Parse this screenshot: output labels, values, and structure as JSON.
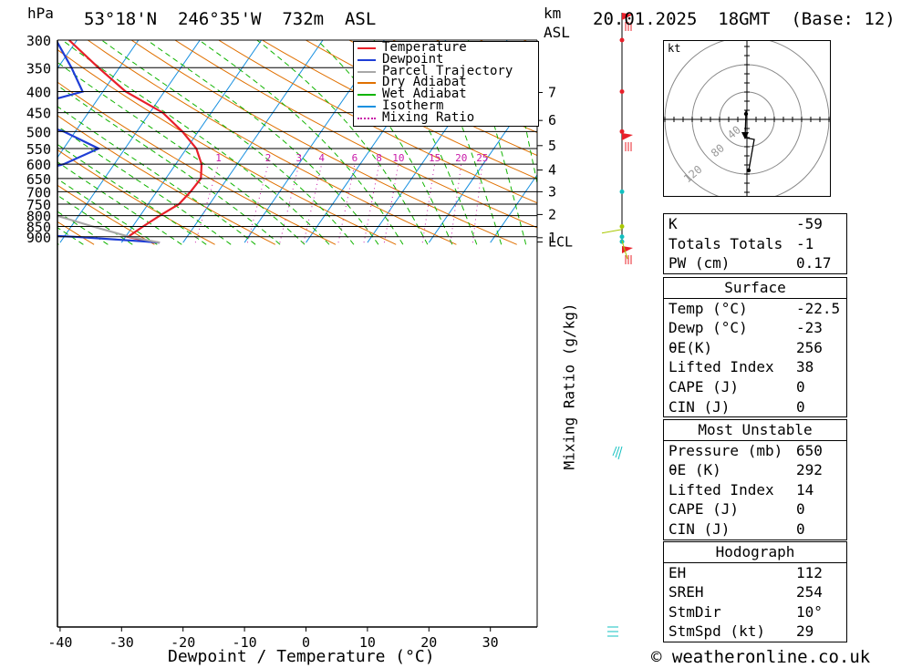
{
  "header": {
    "location": "53°18'N  246°35'W  732m  ASL",
    "datetime": "20.01.2025  18GMT  (Base: 12)",
    "hpa_label": "hPa",
    "km_label": "km",
    "asl_label": "ASL"
  },
  "chart_data": {
    "type": "line",
    "xlabel": "Dewpoint / Temperature (°C)",
    "ylabel_left": "hPa",
    "ylabel_right": "Mixing Ratio (g/kg)",
    "x_ticks": [
      -40,
      -30,
      -20,
      -10,
      0,
      10,
      20,
      30
    ],
    "pressure_levels": [
      300,
      350,
      400,
      450,
      500,
      550,
      600,
      650,
      700,
      750,
      800,
      850,
      900
    ],
    "km_ticks": [
      {
        "label": "7",
        "p": 402
      },
      {
        "label": "6",
        "p": 470
      },
      {
        "label": "5",
        "p": 541
      },
      {
        "label": "4",
        "p": 620
      },
      {
        "label": "3",
        "p": 700
      },
      {
        "label": "2",
        "p": 795
      },
      {
        "label": "1",
        "p": 905
      },
      {
        "label": "LCL",
        "p": 927
      }
    ],
    "mixing_ratio_labels": [
      "1",
      "2",
      "3",
      "4",
      "6",
      "8",
      "10",
      "15",
      "20",
      "25"
    ],
    "legend": {
      "placement": "top-right",
      "entries": [
        {
          "name": "Temperature",
          "color": "#e8202a",
          "style": "solid"
        },
        {
          "name": "Dewpoint",
          "color": "#1f3ed6",
          "style": "solid"
        },
        {
          "name": "Parcel Trajectory",
          "color": "#a8a8a8",
          "style": "solid"
        },
        {
          "name": "Dry Adiabat",
          "color": "#e07000",
          "style": "solid"
        },
        {
          "name": "Wet Adiabat",
          "color": "#11b400",
          "style": "solid"
        },
        {
          "name": "Isotherm",
          "color": "#1890e0",
          "style": "solid"
        },
        {
          "name": "Mixing Ratio",
          "color": "#c81aa8",
          "style": "dotted"
        }
      ]
    },
    "series": [
      {
        "name": "Temperature",
        "color": "#e8202a",
        "points": [
          [
            300,
            -61.3
          ],
          [
            350,
            -53.4
          ],
          [
            400,
            -46.3
          ],
          [
            450,
            -37.9
          ],
          [
            500,
            -32.6
          ],
          [
            550,
            -28.4
          ],
          [
            600,
            -25.8
          ],
          [
            650,
            -24.3
          ],
          [
            700,
            -24.5
          ],
          [
            750,
            -25.0
          ],
          [
            800,
            -26.8
          ],
          [
            850,
            -28.3
          ],
          [
            900,
            -29.6
          ],
          [
            925,
            -25.6
          ],
          [
            930,
            -23.8
          ]
        ]
      },
      {
        "name": "Dewpoint",
        "color": "#1f3ed6",
        "points": [
          [
            300,
            -63.4
          ],
          [
            350,
            -57.8
          ],
          [
            400,
            -53.3
          ],
          [
            450,
            -63.6
          ],
          [
            500,
            -51.9
          ],
          [
            550,
            -44.3
          ],
          [
            600,
            -48.2
          ],
          [
            650,
            -55.3
          ],
          [
            700,
            -72.2
          ],
          [
            750,
            -81.1
          ],
          [
            800,
            -84.0
          ],
          [
            850,
            -80.4
          ],
          [
            900,
            -38.3
          ],
          [
            925,
            -26.0
          ],
          [
            930,
            -23.8
          ]
        ]
      },
      {
        "name": "Parcel Trajectory",
        "color": "#a8a8a8",
        "points": [
          [
            930,
            -23.8
          ],
          [
            900,
            -29.4
          ],
          [
            850,
            -36.5
          ],
          [
            800,
            -43.6
          ],
          [
            750,
            -50.5
          ],
          [
            700,
            -57.8
          ],
          [
            650,
            -65.9
          ],
          [
            600,
            -73.9
          ],
          [
            550,
            -82.5
          ],
          [
            520,
            -88
          ]
        ]
      }
    ]
  },
  "hodograph": {
    "unit_label": "kt",
    "ring_labels": [
      "40",
      "80",
      "120"
    ]
  },
  "indices": {
    "top": [
      {
        "label": "K",
        "value": "-59"
      },
      {
        "label": "Totals Totals",
        "value": "-1"
      },
      {
        "label": "PW (cm)",
        "value": "0.17"
      }
    ],
    "surface": {
      "title": "Surface",
      "rows": [
        {
          "label": "Temp (°C)",
          "value": "-22.5"
        },
        {
          "label": "Dewp (°C)",
          "value": "-23"
        },
        {
          "label": "θE(K)",
          "value": "256"
        },
        {
          "label": "Lifted Index",
          "value": "38"
        },
        {
          "label": "CAPE (J)",
          "value": "0"
        },
        {
          "label": "CIN (J)",
          "value": "0"
        }
      ]
    },
    "most_unstable": {
      "title": "Most Unstable",
      "rows": [
        {
          "label": "Pressure (mb)",
          "value": "650"
        },
        {
          "label": "θE (K)",
          "value": "292"
        },
        {
          "label": "Lifted Index",
          "value": "14"
        },
        {
          "label": "CAPE (J)",
          "value": "0"
        },
        {
          "label": "CIN (J)",
          "value": "0"
        }
      ]
    },
    "hodograph_box": {
      "title": "Hodograph",
      "rows": [
        {
          "label": "EH",
          "value": "112"
        },
        {
          "label": "SREH",
          "value": "254"
        },
        {
          "label": "StmDir",
          "value": "10°"
        },
        {
          "label": "StmSpd (kt)",
          "value": "29"
        }
      ]
    }
  },
  "copyright": "© weatheronline.co.uk"
}
